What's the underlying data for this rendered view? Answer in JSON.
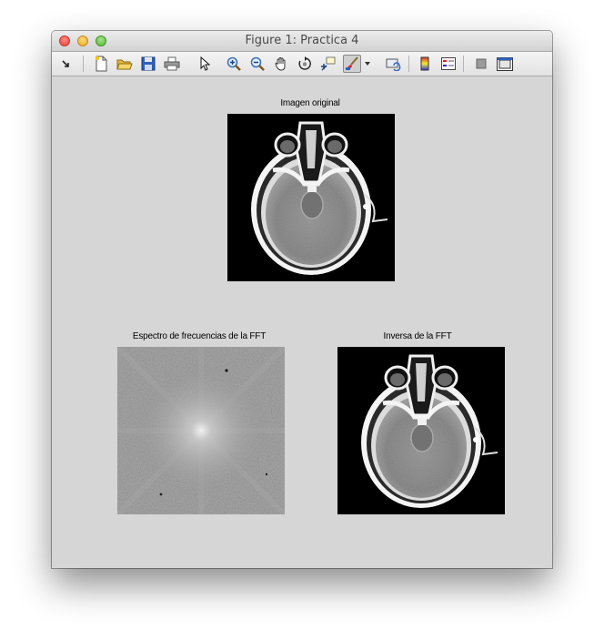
{
  "window": {
    "title": "Figure 1: Practica 4"
  },
  "toolbar": {
    "tools": [
      "dock-icon",
      "new-figure-icon",
      "open-icon",
      "save-icon",
      "print-icon",
      "pointer-icon",
      "zoom-in-icon",
      "zoom-out-icon",
      "pan-icon",
      "rotate-3d-icon",
      "data-cursor-icon",
      "brush-icon",
      "brush-dropdown-icon",
      "link-plot-icon",
      "colorbar-icon",
      "legend-icon",
      "hide-plot-tools-icon",
      "show-plot-tools-icon"
    ]
  },
  "axes": [
    {
      "title": "Imagen original",
      "content": "ct-scan-original"
    },
    {
      "title": "Espectro de frecuencias de la FFT",
      "content": "fft-spectrum"
    },
    {
      "title": "Inversa de la FFT",
      "content": "ct-scan-inverse"
    }
  ],
  "colors": {
    "figure_bg": "#d6d6d6",
    "axes_bg": "#000000"
  }
}
